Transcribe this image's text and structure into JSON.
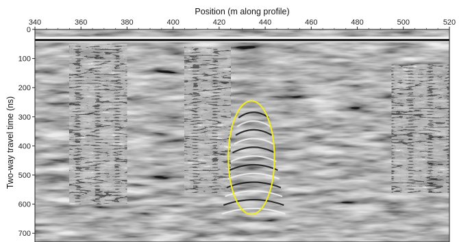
{
  "chart_data": {
    "type": "heatmap",
    "subtype": "ground-penetrating-radar radargram (grayscale)",
    "title": "",
    "xlabel": "Position (m along profile)",
    "ylabel": "Two-way travel time (ns)",
    "x_axis_position": "top",
    "xlim": [
      340,
      520
    ],
    "ylim": [
      0,
      730
    ],
    "y_inverted": true,
    "x_ticks": [
      340,
      360,
      380,
      400,
      420,
      440,
      460,
      480,
      500,
      520
    ],
    "y_ticks": [
      0,
      100,
      200,
      300,
      400,
      500,
      600,
      700
    ],
    "grid": false,
    "colormap": "grayscale",
    "features": [
      {
        "kind": "surface-reflection-band",
        "y_range": [
          25,
          45
        ]
      },
      {
        "kind": "reflection-zone",
        "x_range": [
          355,
          380
        ],
        "y_range": [
          50,
          600
        ]
      },
      {
        "kind": "reflection-zone",
        "x_range": [
          405,
          425
        ],
        "y_range": [
          60,
          560
        ]
      },
      {
        "kind": "hyperbolic-anomaly",
        "x_center": 435,
        "y_range": [
          280,
          640
        ]
      },
      {
        "kind": "reflection-zone",
        "x_range": [
          495,
          520
        ],
        "y_range": [
          120,
          560
        ]
      }
    ],
    "annotations": [
      {
        "type": "ellipse",
        "color": "#f2ee1c",
        "cx": 434,
        "cy": 440,
        "rx": 10,
        "ry": 195
      }
    ]
  }
}
